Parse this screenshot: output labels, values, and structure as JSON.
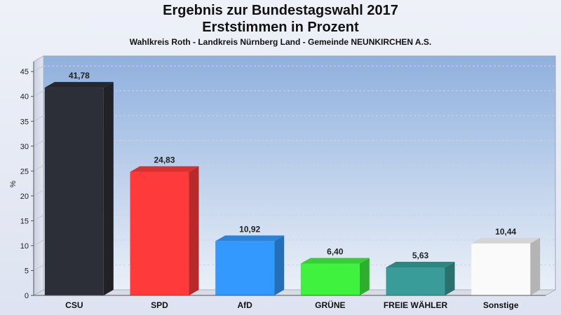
{
  "header": {
    "title": "Ergebnis zur Bundestagswahl 2017",
    "subtitle": "Erststimmen in Prozent",
    "caption": "Wahlkreis Roth - Landkreis Nürnberg Land - Gemeinde NEUNKIRCHEN A.S."
  },
  "chart_data": {
    "type": "bar",
    "title": "Ergebnis zur Bundestagswahl 2017",
    "subtitle": "Erststimmen in Prozent",
    "ylabel": "%",
    "xlabel": "",
    "ylim": [
      0,
      47
    ],
    "yticks": [
      0,
      5,
      10,
      15,
      20,
      25,
      30,
      35,
      40,
      45
    ],
    "grid": true,
    "legend": "none",
    "categories": [
      "CSU",
      "SPD",
      "AfD",
      "GRÜNE",
      "FREIE WÄHLER",
      "Sonstige"
    ],
    "values": [
      41.78,
      24.83,
      10.92,
      6.4,
      5.63,
      10.44
    ],
    "value_labels": [
      "41,78",
      "24,83",
      "10,92",
      "6,40",
      "5,63",
      "10,44"
    ],
    "colors": [
      "#2c2f37",
      "#ff3a3a",
      "#3399ff",
      "#3ef23e",
      "#3a9c98",
      "#fafafa"
    ]
  }
}
